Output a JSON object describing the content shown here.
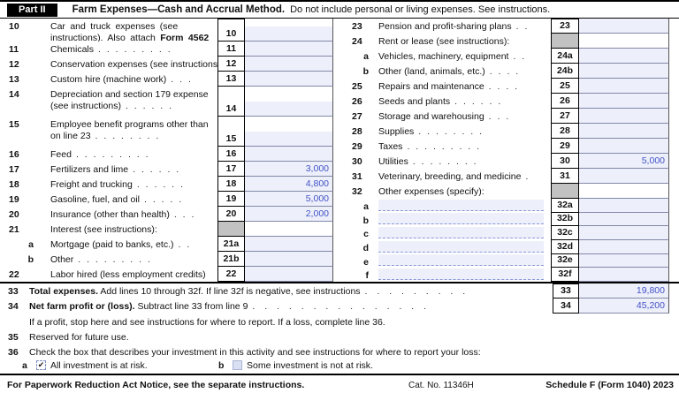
{
  "header": {
    "part": "Part II",
    "title": "Farm Expenses—Cash and Accrual Method.",
    "subtitle": "Do not include personal or living expenses. See instructions."
  },
  "colors": {
    "field_bg": "#edeffa",
    "value_text": "#4353c8",
    "gray_cell": "#c2c2c2",
    "bar_bg": "#000000"
  },
  "left_rows": [
    {
      "no": "10",
      "lines": [
        [
          {
            "t": "Car and truck expenses (see"
          }
        ],
        [
          {
            "t": "instructions). Also attach "
          },
          {
            "t": "Form 4562",
            "b": true
          }
        ]
      ],
      "dots": 0,
      "box": "10",
      "value": "",
      "tall": true,
      "h": 26,
      "justify": true
    },
    {
      "no": "11",
      "label": "Chemicals",
      "dots": 9,
      "box": "11",
      "value": ""
    },
    {
      "no": "12",
      "label": "Conservation expenses (see instructions)",
      "dots": 0,
      "box": "12",
      "value": ""
    },
    {
      "no": "13",
      "label": "Custom hire (machine work)",
      "dots": 3,
      "box": "13",
      "value": ""
    },
    {
      "no": "14",
      "lines": [
        [
          {
            "t": "Depreciation and section 179 expense"
          }
        ],
        [
          {
            "t": "(see instructions)"
          }
        ]
      ],
      "dots": 6,
      "box": "14",
      "value": "",
      "tall": true,
      "h": 34
    },
    {
      "no": "15",
      "lines": [
        [
          {
            "t": "Employee benefit programs other than"
          }
        ],
        [
          {
            "t": "on line 23"
          }
        ]
      ],
      "dots": 8,
      "box": "15",
      "value": "",
      "tall": true,
      "h": 34
    },
    {
      "no": "16",
      "label": "Feed",
      "dots": 9,
      "box": "16",
      "value": ""
    },
    {
      "no": "17",
      "label": "Fertilizers and lime",
      "dots": 6,
      "box": "17",
      "value": "3,000"
    },
    {
      "no": "18",
      "label": "Freight and trucking",
      "dots": 6,
      "box": "18",
      "value": "4,800"
    },
    {
      "no": "19",
      "label": "Gasoline, fuel, and oil",
      "dots": 5,
      "box": "19",
      "value": "5,000"
    },
    {
      "no": "20",
      "label": "Insurance (other than health)",
      "dots": 3,
      "box": "20",
      "value": "2,000"
    },
    {
      "no": "21",
      "label": "Interest (see instructions):",
      "dots": 0,
      "gray": true
    },
    {
      "no": "a",
      "sub": true,
      "label": "Mortgage (paid to banks, etc.)",
      "dots": 2,
      "box": "21a",
      "value": ""
    },
    {
      "no": "b",
      "sub": true,
      "label": "Other",
      "dots": 9,
      "box": "21b",
      "value": ""
    },
    {
      "no": "22",
      "label": "Labor hired (less employment credits)",
      "dots": 0,
      "box": "22",
      "value": ""
    }
  ],
  "right_rows": [
    {
      "no": "23",
      "label": "Pension and profit-sharing plans",
      "dots": 2,
      "box": "23",
      "value": ""
    },
    {
      "no": "24",
      "label": "Rent or lease (see instructions):",
      "dots": 0,
      "gray": true
    },
    {
      "no": "a",
      "sub": true,
      "label": "Vehicles, machinery, equipment",
      "dots": 2,
      "box": "24a",
      "value": ""
    },
    {
      "no": "b",
      "sub": true,
      "label": "Other (land, animals, etc.)",
      "dots": 4,
      "box": "24b",
      "value": ""
    },
    {
      "no": "25",
      "label": "Repairs and maintenance",
      "dots": 4,
      "box": "25",
      "value": ""
    },
    {
      "no": "26",
      "label": "Seeds and plants",
      "dots": 6,
      "box": "26",
      "value": ""
    },
    {
      "no": "27",
      "label": "Storage and warehousing",
      "dots": 3,
      "box": "27",
      "value": ""
    },
    {
      "no": "28",
      "label": "Supplies",
      "dots": 8,
      "box": "28",
      "value": ""
    },
    {
      "no": "29",
      "label": "Taxes",
      "dots": 9,
      "box": "29",
      "value": ""
    },
    {
      "no": "30",
      "label": "Utilities",
      "dots": 8,
      "box": "30",
      "value": "5,000"
    },
    {
      "no": "31",
      "label": "Veterinary, breeding, and medicine",
      "dots": 1,
      "box": "31",
      "value": ""
    },
    {
      "no": "32",
      "label": "Other expenses (specify):",
      "dots": 0,
      "gray": true
    },
    {
      "no": "a",
      "sub": true,
      "blank": true,
      "box": "32a",
      "value": ""
    },
    {
      "no": "b",
      "sub": true,
      "blank": true,
      "box": "32b",
      "value": ""
    },
    {
      "no": "c",
      "sub": true,
      "blank": true,
      "box": "32c",
      "value": ""
    },
    {
      "no": "d",
      "sub": true,
      "blank": true,
      "box": "32d",
      "value": ""
    },
    {
      "no": "e",
      "sub": true,
      "blank": true,
      "box": "32e",
      "value": ""
    },
    {
      "no": "f",
      "sub": true,
      "blank": true,
      "box": "32f",
      "value": ""
    }
  ],
  "summary_rows": [
    {
      "no": "33",
      "parts": [
        {
          "t": "Total expenses.",
          "b": true
        },
        {
          "t": " Add lines 10 through 32f. If line 32f is negative, see instructions"
        }
      ],
      "dots": 9,
      "box": "33",
      "value": "19,800"
    },
    {
      "no": "34",
      "parts": [
        {
          "t": "Net farm profit or (loss).",
          "b": true
        },
        {
          "t": " Subtract line 33 from line 9"
        }
      ],
      "dots": 15,
      "box": "34",
      "value": "45,200"
    }
  ],
  "notes": {
    "profit": "If a profit, stop here and see instructions for where to report. If a loss, complete line 36."
  },
  "row35": {
    "no": "35",
    "label": "Reserved for future use."
  },
  "row36": {
    "no": "36",
    "label": "Check the box that describes your investment in this activity and see instructions for where to report your loss:",
    "a": {
      "letter": "a",
      "label": "All investment is at risk.",
      "checked": true,
      "check_glyph": "✔"
    },
    "b": {
      "letter": "b",
      "label": "Some investment is not at risk.",
      "checked": false
    }
  },
  "footer": {
    "left": "For Paperwork Reduction Act Notice, see the separate instructions.",
    "center": "Cat. No. 11346H",
    "right": "Schedule F (Form 1040) 2023"
  }
}
